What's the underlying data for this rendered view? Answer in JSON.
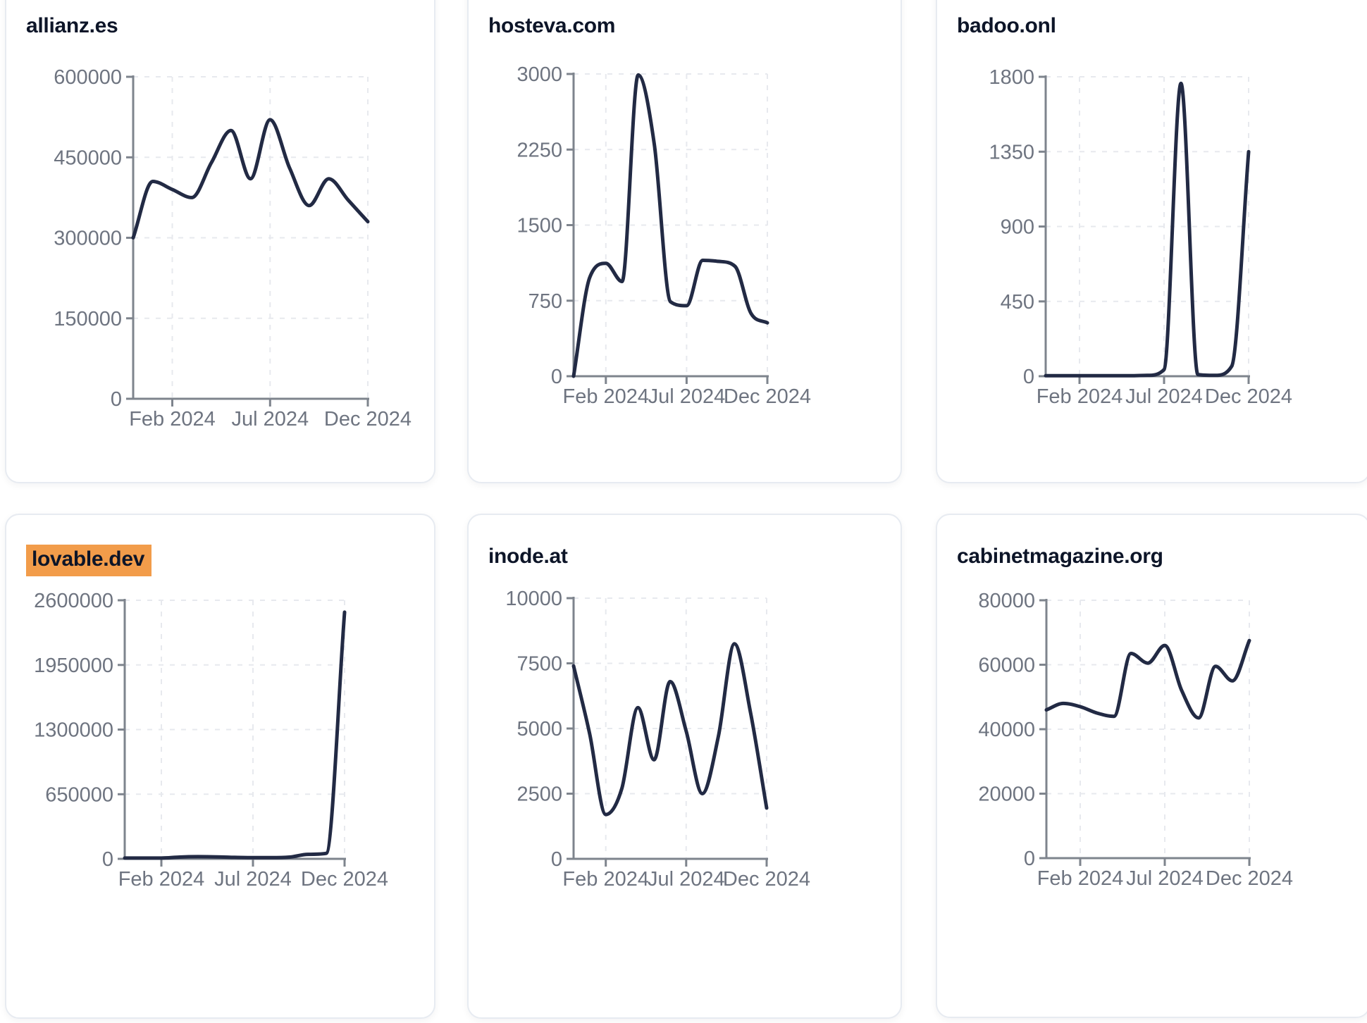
{
  "colors": {
    "background": "#ffffff",
    "card_border": "#e7ebf1",
    "title_text": "#0d1528",
    "line": "#222a44",
    "axis": "#7e848d",
    "grid": "#e7e9ee",
    "tick_text": "#6e7480",
    "highlight": "#f29c4a"
  },
  "chart_data": {
    "type": "line",
    "x": [
      "Dec 2023",
      "Jan 2024",
      "Feb 2024",
      "Mar 2024",
      "Apr 2024",
      "May 2024",
      "Jun 2024",
      "Jul 2024",
      "Aug 2024",
      "Sep 2024",
      "Oct 2024",
      "Nov 2024",
      "Dec 2024"
    ],
    "x_tick_labels": [
      "Feb 2024",
      "Jul 2024",
      "Dec 2024"
    ],
    "grid": true,
    "legend": false,
    "charts": [
      {
        "title": "allianz.es",
        "highlighted": false,
        "ylim": [
          0,
          600000
        ],
        "y_ticks": [
          0,
          150000,
          300000,
          450000,
          600000
        ],
        "values": [
          300000,
          405000,
          390000,
          375000,
          440000,
          500000,
          410000,
          520000,
          430000,
          360000,
          410000,
          370000,
          330000
        ]
      },
      {
        "title": "hosteva.com",
        "highlighted": false,
        "ylim": [
          0,
          3000
        ],
        "y_ticks": [
          0,
          750,
          1500,
          2250,
          3000
        ],
        "values": [
          0,
          980,
          1120,
          940,
          2990,
          2300,
          740,
          700,
          1150,
          1140,
          1090,
          620,
          530
        ]
      },
      {
        "title": "badoo.onl",
        "highlighted": false,
        "ylim": [
          0,
          1800
        ],
        "y_ticks": [
          0,
          450,
          900,
          1350,
          1800
        ],
        "values": [
          3,
          3,
          3,
          3,
          3,
          3,
          5,
          40,
          1760,
          10,
          5,
          60,
          1350
        ]
      },
      {
        "title": "lovable.dev",
        "highlighted": true,
        "ylim": [
          0,
          2600000
        ],
        "y_ticks": [
          0,
          650000,
          1300000,
          1950000,
          2600000
        ],
        "values": [
          8000,
          8000,
          8000,
          18000,
          22000,
          20000,
          15000,
          12000,
          12000,
          18000,
          45000,
          55000,
          2480000
        ]
      },
      {
        "title": "inode.at",
        "highlighted": false,
        "ylim": [
          0,
          10000
        ],
        "y_ticks": [
          0,
          2500,
          5000,
          7500,
          10000
        ],
        "values": [
          7400,
          4800,
          1700,
          2700,
          5800,
          3800,
          6800,
          4900,
          2500,
          4700,
          8250,
          5600,
          1950
        ]
      },
      {
        "title": "cabinetmagazine.org",
        "highlighted": false,
        "ylim": [
          0,
          80000
        ],
        "y_ticks": [
          0,
          20000,
          40000,
          60000,
          80000
        ],
        "values": [
          46000,
          48000,
          47000,
          45000,
          44000,
          63500,
          60500,
          66000,
          52000,
          43500,
          59500,
          55000,
          67500
        ]
      }
    ]
  }
}
